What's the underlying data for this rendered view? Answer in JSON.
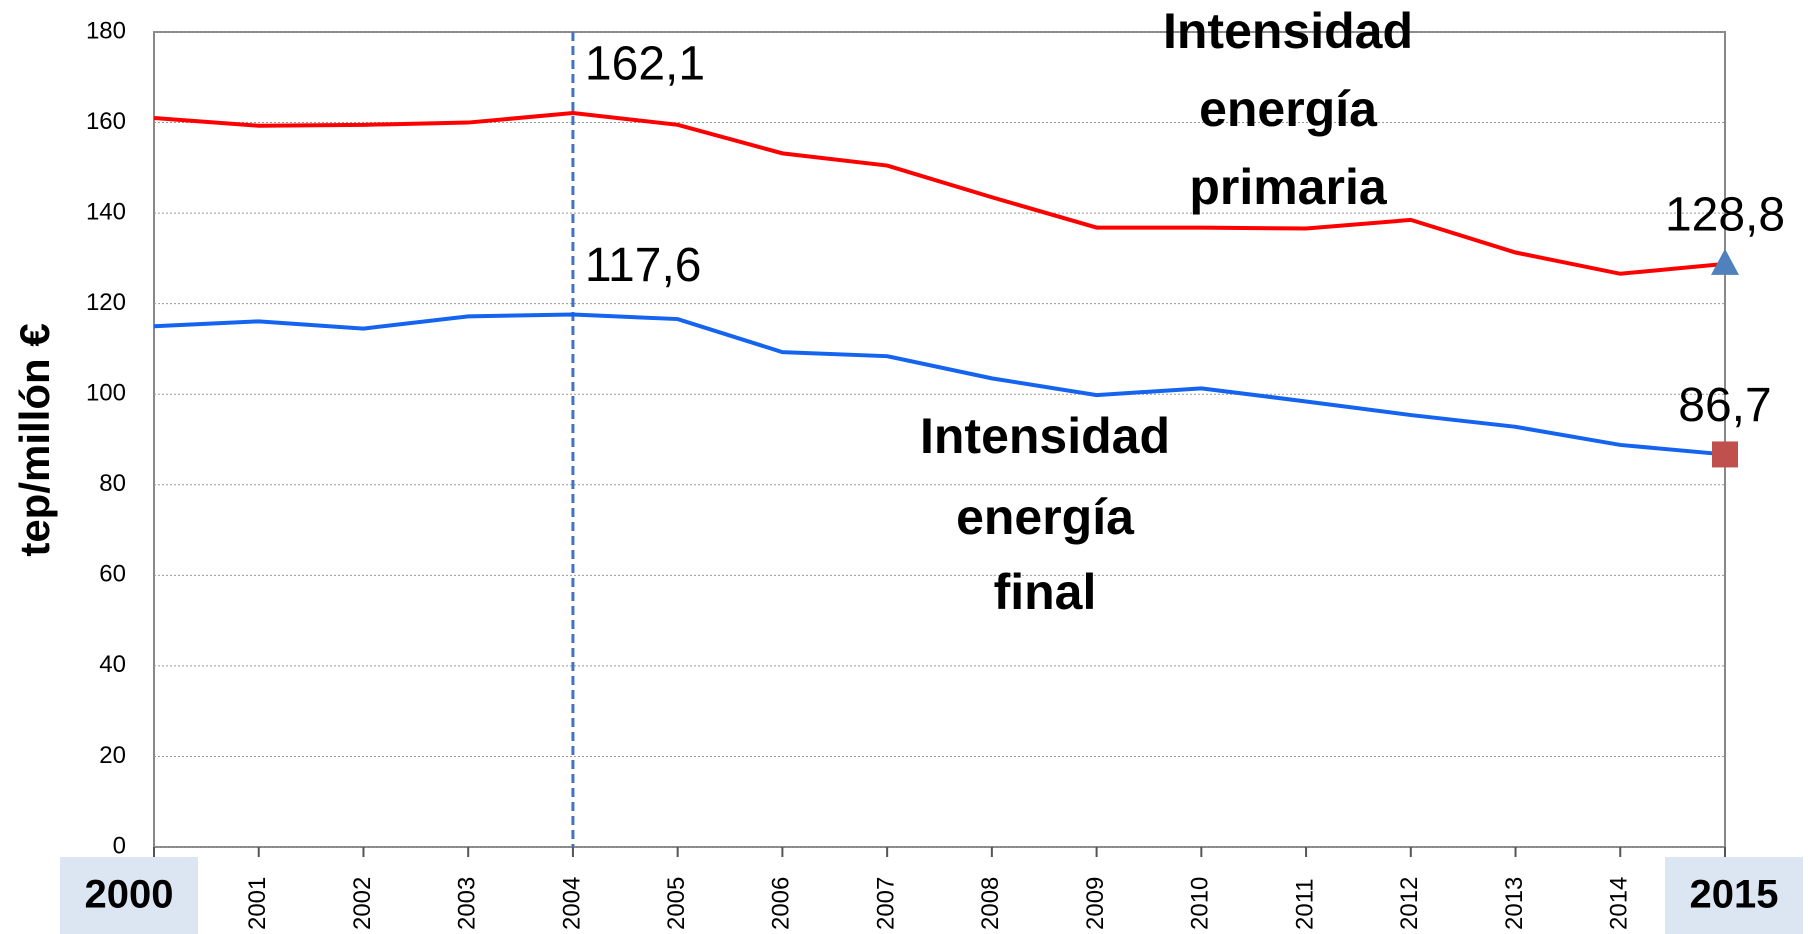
{
  "chart_data": {
    "type": "line",
    "y_label": "tep/millón €",
    "x": [
      2000,
      2001,
      2002,
      2003,
      2004,
      2005,
      2006,
      2007,
      2008,
      2009,
      2010,
      2011,
      2012,
      2013,
      2014,
      2015
    ],
    "xlim": [
      2000,
      2015
    ],
    "xticks": [
      2000,
      2001,
      2002,
      2003,
      2004,
      2005,
      2006,
      2007,
      2008,
      2009,
      2010,
      2011,
      2012,
      2013,
      2014,
      2015
    ],
    "ylim": [
      0,
      180
    ],
    "yticks": [
      0,
      20,
      40,
      60,
      80,
      100,
      120,
      140,
      160,
      180
    ],
    "grid": true,
    "vline": {
      "x": 2004,
      "color": "#4472c4"
    },
    "series": [
      {
        "name": "Intensidad energía primaria",
        "color": "#ff0000",
        "values": [
          161,
          159.3,
          159.5,
          160,
          162.1,
          159.5,
          153.2,
          150.5,
          143.5,
          136.8,
          136.8,
          136.6,
          138.5,
          131.3,
          126.6,
          128.8
        ],
        "value_labels": [
          null,
          null,
          null,
          null,
          "162,1",
          null,
          null,
          null,
          null,
          null,
          null,
          null,
          null,
          null,
          null,
          "128,8"
        ],
        "end_marker": {
          "shape": "triangle",
          "color": "#4f81bd"
        }
      },
      {
        "name": "Intensidad energía final",
        "color": "#1464f0",
        "values": [
          115,
          116.1,
          114.5,
          117.2,
          117.6,
          116.6,
          109.3,
          108.4,
          103.5,
          99.8,
          101.3,
          98.4,
          95.4,
          92.8,
          88.8,
          86.7
        ],
        "value_labels": [
          null,
          null,
          null,
          null,
          "117,6",
          null,
          null,
          null,
          null,
          null,
          null,
          null,
          null,
          null,
          null,
          "86,7"
        ],
        "end_marker": {
          "shape": "square",
          "color": "#c0504d"
        }
      }
    ]
  }
}
